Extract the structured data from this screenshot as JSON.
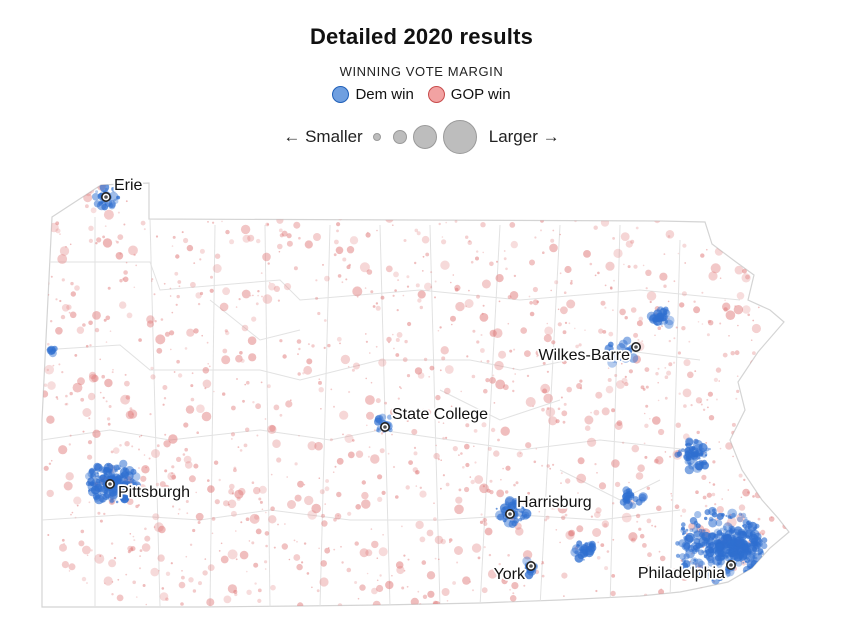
{
  "header": {
    "title": "Detailed 2020 results",
    "subtitle": "WINNING VOTE MARGIN"
  },
  "legend": {
    "dem_label": "Dem win",
    "gop_label": "GOP win",
    "smaller_label": "← Smaller",
    "larger_label": "Larger →"
  },
  "colors": {
    "dem": "#2f6fd0",
    "gop": "#e07b7b",
    "border": "#d6d6d6"
  },
  "cities": [
    {
      "name": "Erie"
    },
    {
      "name": "Wilkes-Barre"
    },
    {
      "name": "State College"
    },
    {
      "name": "Pittsburgh"
    },
    {
      "name": "Harrisburg"
    },
    {
      "name": "York"
    },
    {
      "name": "Philadelphia"
    }
  ]
}
